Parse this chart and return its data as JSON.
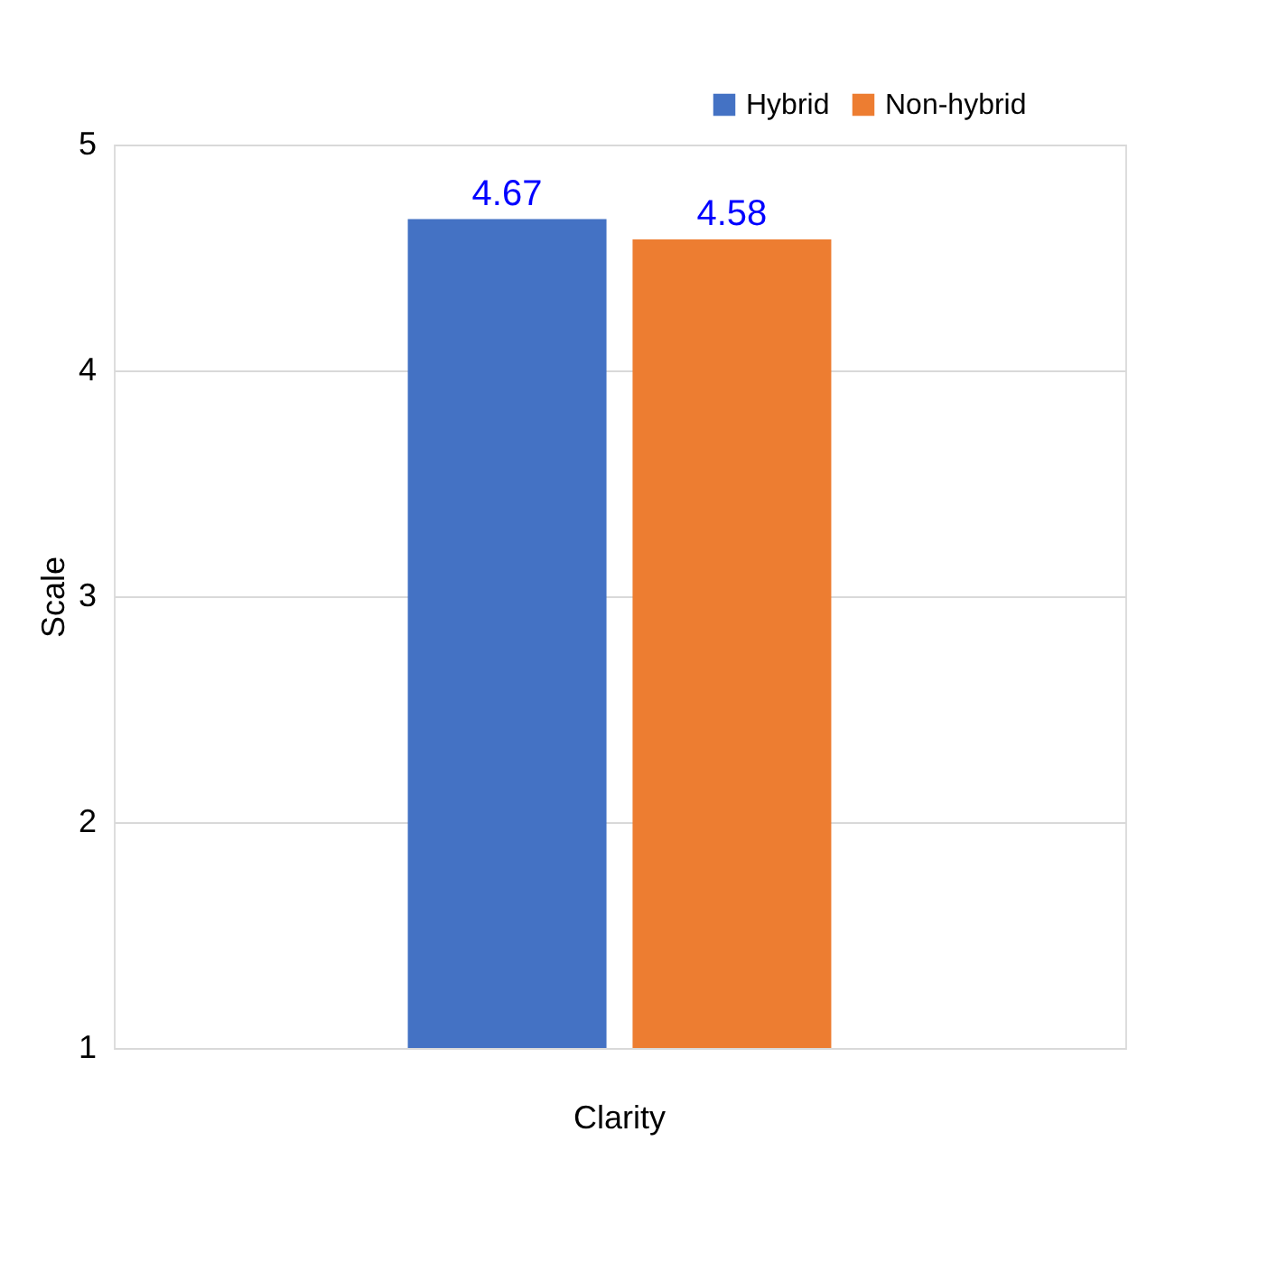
{
  "chart_data": {
    "type": "bar",
    "categories": [
      "Clarity"
    ],
    "ylabel": "Scale",
    "ylim": [
      1,
      5
    ],
    "yticks": [
      1,
      2,
      3,
      4,
      5
    ],
    "grid": "y",
    "legend": "top right",
    "data_labels": true,
    "series": [
      {
        "name": "Hybrid",
        "color": "#4472c4",
        "values": [
          4.67
        ]
      },
      {
        "name": "Non-hybrid",
        "color": "#ed7d31",
        "values": [
          4.58
        ]
      }
    ]
  }
}
